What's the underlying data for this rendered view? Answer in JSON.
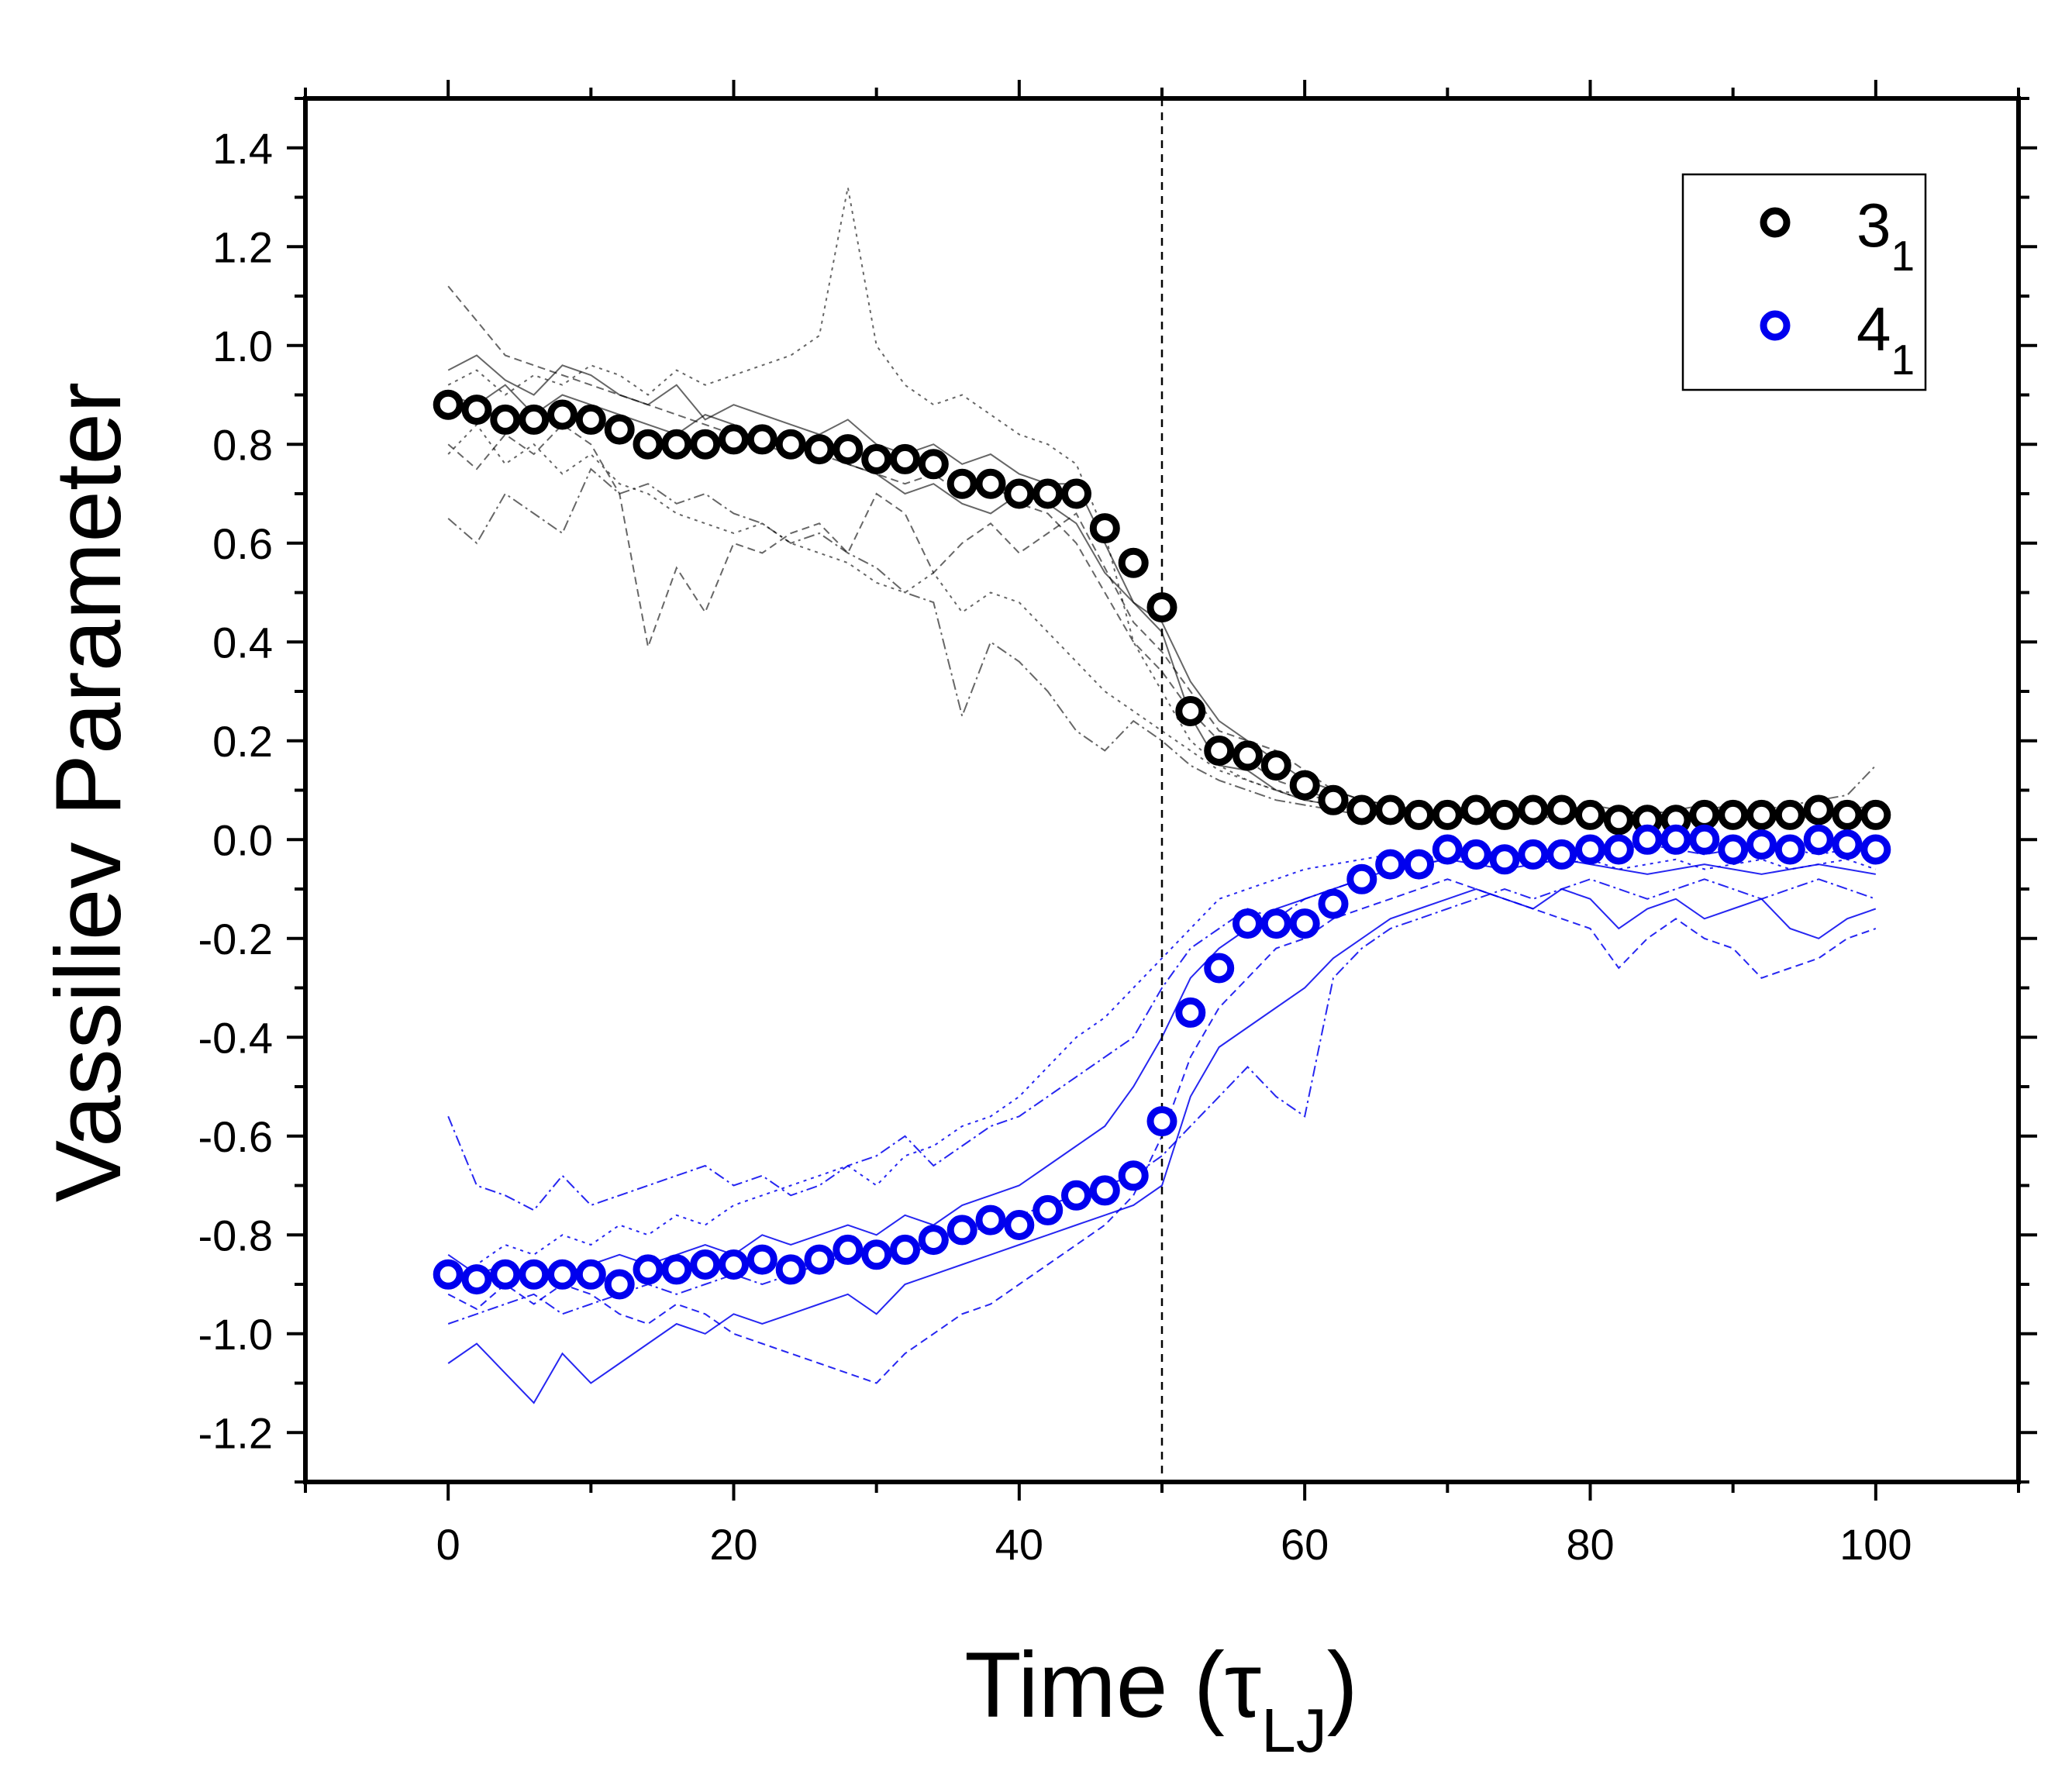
{
  "chart_data": {
    "type": "scatter",
    "xlabel": "Time (τLJ)",
    "xlabel_main": "Time (τ",
    "xlabel_sub": "LJ",
    "xlabel_close": ")",
    "ylabel": "Vassiliev Parameter",
    "xlim": [
      -10,
      110
    ],
    "ylim": [
      -1.3,
      1.5
    ],
    "x_ticks": [
      0,
      20,
      40,
      60,
      80,
      100
    ],
    "x_tick_labels": [
      "0",
      "20",
      "40",
      "60",
      "80",
      "100"
    ],
    "y_ticks": [
      -1.2,
      -1.0,
      -0.8,
      -0.6,
      -0.4,
      -0.2,
      0.0,
      0.2,
      0.4,
      0.6,
      0.8,
      1.0,
      1.2,
      1.4
    ],
    "y_tick_labels": [
      "-1.2",
      "-1.0",
      "-0.8",
      "-0.6",
      "-0.4",
      "-0.2",
      "0.0",
      "0.2",
      "0.4",
      "0.6",
      "0.8",
      "1.0",
      "1.2",
      "1.4"
    ],
    "grid": false,
    "legend_position": "top-right",
    "vertical_reference_line": {
      "x": 50,
      "style": "dashed"
    },
    "x": [
      0,
      2,
      4,
      6,
      8,
      10,
      12,
      14,
      16,
      18,
      20,
      22,
      24,
      26,
      28,
      30,
      32,
      34,
      36,
      38,
      40,
      42,
      44,
      46,
      48,
      50,
      52,
      54,
      56,
      58,
      60,
      62,
      64,
      66,
      68,
      70,
      72,
      74,
      76,
      78,
      80,
      82,
      84,
      86,
      88,
      90,
      92,
      94,
      96,
      98,
      100
    ],
    "series": [
      {
        "name_main": "3",
        "name_sub": "1",
        "color": "#000000",
        "marker": "open-circle",
        "values": [
          0.88,
          0.87,
          0.85,
          0.85,
          0.86,
          0.85,
          0.83,
          0.8,
          0.8,
          0.8,
          0.81,
          0.81,
          0.8,
          0.79,
          0.79,
          0.77,
          0.77,
          0.76,
          0.72,
          0.72,
          0.7,
          0.7,
          0.7,
          0.63,
          0.56,
          0.47,
          0.26,
          0.18,
          0.17,
          0.15,
          0.11,
          0.08,
          0.06,
          0.06,
          0.05,
          0.05,
          0.06,
          0.05,
          0.06,
          0.06,
          0.05,
          0.04,
          0.04,
          0.04,
          0.05,
          0.05,
          0.05,
          0.05,
          0.06,
          0.05,
          0.05
        ]
      },
      {
        "name_main": "4",
        "name_sub": "1",
        "color": "#0000ee",
        "marker": "open-circle",
        "values": [
          -0.88,
          -0.89,
          -0.88,
          -0.88,
          -0.88,
          -0.88,
          -0.9,
          -0.87,
          -0.87,
          -0.86,
          -0.86,
          -0.85,
          -0.87,
          -0.85,
          -0.83,
          -0.84,
          -0.83,
          -0.81,
          -0.79,
          -0.77,
          -0.78,
          -0.75,
          -0.72,
          -0.71,
          -0.68,
          -0.57,
          -0.35,
          -0.26,
          -0.17,
          -0.17,
          -0.17,
          -0.13,
          -0.08,
          -0.05,
          -0.05,
          -0.02,
          -0.03,
          -0.04,
          -0.03,
          -0.03,
          -0.02,
          -0.02,
          0.0,
          0.0,
          0.0,
          -0.02,
          -0.01,
          -0.02,
          0.0,
          -0.01,
          -0.02
        ]
      }
    ],
    "background_traces_note_free": true,
    "background_traces": [
      {
        "series_index": 0,
        "values": [
          0.95,
          0.98,
          0.93,
          0.9,
          0.96,
          0.94,
          0.9,
          0.88,
          0.92,
          0.85,
          0.88,
          0.86,
          0.84,
          0.82,
          0.85,
          0.8,
          0.78,
          0.8,
          0.76,
          0.78,
          0.74,
          0.72,
          0.72,
          0.6,
          0.48,
          0.42,
          0.25,
          0.15,
          0.14,
          0.1,
          0.08,
          0.07,
          0.06,
          0.05,
          0.06,
          0.05,
          0.04,
          0.06,
          0.05,
          0.07,
          0.06,
          0.04,
          0.05,
          0.05,
          0.06,
          0.07,
          0.04,
          0.06,
          0.05,
          0.06,
          0.07
        ]
      },
      {
        "series_index": 0,
        "values": [
          0.8,
          0.75,
          0.82,
          0.78,
          0.84,
          0.8,
          0.7,
          0.39,
          0.55,
          0.46,
          0.6,
          0.58,
          0.62,
          0.64,
          0.58,
          0.7,
          0.66,
          0.54,
          0.6,
          0.64,
          0.58,
          0.62,
          0.66,
          0.55,
          0.44,
          0.38,
          0.3,
          0.22,
          0.2,
          0.18,
          0.14,
          0.1,
          0.08,
          0.07,
          0.06,
          0.05,
          0.06,
          0.04,
          0.05,
          0.06,
          0.04,
          0.05,
          0.06,
          0.04,
          0.05,
          0.06,
          0.05,
          0.04,
          0.05,
          0.06,
          0.05
        ]
      },
      {
        "series_index": 0,
        "values": [
          0.92,
          0.95,
          0.9,
          0.94,
          0.92,
          0.96,
          0.94,
          0.9,
          0.95,
          0.92,
          0.94,
          0.96,
          0.98,
          1.02,
          1.32,
          1.0,
          0.92,
          0.88,
          0.9,
          0.86,
          0.82,
          0.8,
          0.76,
          0.62,
          0.4,
          0.3,
          0.2,
          0.15,
          0.12,
          0.1,
          0.08,
          0.07,
          0.05,
          0.06,
          0.05,
          0.06,
          0.05,
          0.06,
          0.05,
          0.04,
          0.06,
          0.05,
          0.06,
          0.05,
          0.04,
          0.05,
          0.06,
          0.05,
          0.06,
          0.05,
          0.06
        ]
      },
      {
        "series_index": 0,
        "values": [
          0.65,
          0.6,
          0.7,
          0.66,
          0.62,
          0.75,
          0.7,
          0.72,
          0.68,
          0.7,
          0.66,
          0.64,
          0.6,
          0.62,
          0.58,
          0.55,
          0.5,
          0.48,
          0.25,
          0.4,
          0.36,
          0.3,
          0.22,
          0.18,
          0.24,
          0.2,
          0.15,
          0.12,
          0.1,
          0.08,
          0.07,
          0.06,
          0.05,
          0.06,
          0.05,
          0.06,
          0.07,
          0.05,
          0.06,
          0.05,
          0.07,
          0.06,
          0.05,
          0.06,
          0.07,
          0.05,
          0.06,
          0.07,
          0.08,
          0.09,
          0.15
        ]
      },
      {
        "series_index": 0,
        "values": [
          0.9,
          0.88,
          0.92,
          0.86,
          0.9,
          0.88,
          0.86,
          0.84,
          0.82,
          0.86,
          0.84,
          0.8,
          0.78,
          0.8,
          0.76,
          0.74,
          0.7,
          0.72,
          0.68,
          0.66,
          0.7,
          0.68,
          0.64,
          0.54,
          0.48,
          0.44,
          0.32,
          0.24,
          0.2,
          0.16,
          0.12,
          0.1,
          0.08,
          0.07,
          0.06,
          0.05,
          0.04,
          0.05,
          0.06,
          0.05,
          0.04,
          0.06,
          0.05,
          0.04,
          0.05,
          0.06,
          0.04,
          0.05,
          0.06,
          0.04,
          0.05
        ]
      },
      {
        "series_index": 0,
        "values": [
          1.12,
          1.05,
          0.98,
          0.96,
          0.94,
          0.92,
          0.9,
          0.88,
          0.86,
          0.84,
          0.82,
          0.82,
          0.8,
          0.78,
          0.76,
          0.74,
          0.72,
          0.74,
          0.7,
          0.72,
          0.68,
          0.66,
          0.6,
          0.5,
          0.4,
          0.34,
          0.26,
          0.2,
          0.16,
          0.12,
          0.1,
          0.08,
          0.06,
          0.05,
          0.06,
          0.05,
          0.04,
          0.05,
          0.06,
          0.05,
          0.04,
          0.03,
          0.05,
          0.06,
          0.04,
          0.05,
          0.06,
          0.05,
          0.04,
          0.05,
          0.06
        ]
      },
      {
        "series_index": 0,
        "values": [
          0.78,
          0.84,
          0.76,
          0.8,
          0.74,
          0.78,
          0.72,
          0.7,
          0.66,
          0.64,
          0.62,
          0.64,
          0.6,
          0.58,
          0.56,
          0.52,
          0.5,
          0.54,
          0.46,
          0.5,
          0.48,
          0.42,
          0.36,
          0.3,
          0.26,
          0.22,
          0.18,
          0.14,
          0.12,
          0.1,
          0.09,
          0.08,
          0.07,
          0.06,
          0.05,
          0.06,
          0.05,
          0.06,
          0.05,
          0.06,
          0.05,
          0.06,
          0.05,
          0.06,
          0.05,
          0.06,
          0.05,
          0.06,
          0.05,
          0.06,
          0.05
        ]
      },
      {
        "series_index": 1,
        "values": [
          -0.56,
          -0.7,
          -0.72,
          -0.75,
          -0.68,
          -0.74,
          -0.72,
          -0.7,
          -0.68,
          -0.66,
          -0.7,
          -0.68,
          -0.72,
          -0.7,
          -0.66,
          -0.64,
          -0.6,
          -0.66,
          -0.62,
          -0.58,
          -0.56,
          -0.52,
          -0.48,
          -0.44,
          -0.4,
          -0.3,
          -0.22,
          -0.18,
          -0.14,
          -0.16,
          -0.12,
          -0.1,
          -0.08,
          -0.06,
          -0.05,
          -0.04,
          -0.03,
          -0.04,
          -0.03,
          -0.02,
          -0.03,
          -0.02,
          -0.01,
          -0.02,
          -0.03,
          -0.02,
          -0.01,
          -0.02,
          -0.03,
          -0.02,
          -0.01
        ]
      },
      {
        "series_index": 1,
        "values": [
          -1.06,
          -1.02,
          -1.08,
          -1.14,
          -1.04,
          -1.1,
          -1.06,
          -1.02,
          -0.98,
          -1.0,
          -0.96,
          -0.98,
          -0.96,
          -0.94,
          -0.92,
          -0.96,
          -0.9,
          -0.88,
          -0.86,
          -0.84,
          -0.82,
          -0.8,
          -0.78,
          -0.76,
          -0.74,
          -0.7,
          -0.52,
          -0.42,
          -0.38,
          -0.34,
          -0.3,
          -0.24,
          -0.2,
          -0.16,
          -0.14,
          -0.12,
          -0.1,
          -0.12,
          -0.14,
          -0.1,
          -0.12,
          -0.18,
          -0.14,
          -0.12,
          -0.16,
          -0.14,
          -0.12,
          -0.18,
          -0.2,
          -0.16,
          -0.14
        ]
      },
      {
        "series_index": 1,
        "values": [
          -0.92,
          -0.95,
          -0.9,
          -0.94,
          -0.9,
          -0.92,
          -0.96,
          -0.98,
          -0.94,
          -0.96,
          -1.0,
          -1.02,
          -1.04,
          -1.06,
          -1.08,
          -1.1,
          -1.04,
          -1.0,
          -0.96,
          -0.94,
          -0.9,
          -0.86,
          -0.82,
          -0.78,
          -0.72,
          -0.6,
          -0.44,
          -0.34,
          -0.28,
          -0.22,
          -0.2,
          -0.16,
          -0.14,
          -0.12,
          -0.1,
          -0.08,
          -0.1,
          -0.12,
          -0.14,
          -0.16,
          -0.18,
          -0.26,
          -0.2,
          -0.16,
          -0.2,
          -0.22,
          -0.28,
          -0.26,
          -0.24,
          -0.2,
          -0.18
        ]
      },
      {
        "series_index": 1,
        "values": [
          -0.9,
          -0.86,
          -0.82,
          -0.84,
          -0.8,
          -0.82,
          -0.78,
          -0.8,
          -0.76,
          -0.78,
          -0.74,
          -0.72,
          -0.7,
          -0.68,
          -0.66,
          -0.7,
          -0.64,
          -0.62,
          -0.58,
          -0.56,
          -0.52,
          -0.46,
          -0.4,
          -0.36,
          -0.3,
          -0.24,
          -0.18,
          -0.12,
          -0.1,
          -0.08,
          -0.06,
          -0.05,
          -0.04,
          -0.03,
          -0.04,
          -0.03,
          -0.02,
          -0.03,
          -0.04,
          -0.05,
          -0.04,
          -0.06,
          -0.05,
          -0.04,
          -0.06,
          -0.05,
          -0.04,
          -0.06,
          -0.05,
          -0.04,
          -0.06
        ]
      },
      {
        "series_index": 1,
        "values": [
          -0.98,
          -0.96,
          -0.94,
          -0.92,
          -0.96,
          -0.94,
          -0.92,
          -0.9,
          -0.92,
          -0.9,
          -0.88,
          -0.9,
          -0.88,
          -0.86,
          -0.84,
          -0.82,
          -0.84,
          -0.82,
          -0.8,
          -0.78,
          -0.76,
          -0.74,
          -0.72,
          -0.7,
          -0.68,
          -0.64,
          -0.58,
          -0.52,
          -0.46,
          -0.52,
          -0.56,
          -0.28,
          -0.22,
          -0.18,
          -0.16,
          -0.14,
          -0.12,
          -0.1,
          -0.12,
          -0.1,
          -0.08,
          -0.1,
          -0.12,
          -0.1,
          -0.08,
          -0.1,
          -0.12,
          -0.1,
          -0.08,
          -0.1,
          -0.12
        ]
      },
      {
        "series_index": 1,
        "values": [
          -0.84,
          -0.88,
          -0.86,
          -0.9,
          -0.88,
          -0.86,
          -0.84,
          -0.86,
          -0.84,
          -0.82,
          -0.84,
          -0.8,
          -0.82,
          -0.8,
          -0.78,
          -0.8,
          -0.76,
          -0.78,
          -0.74,
          -0.72,
          -0.7,
          -0.66,
          -0.62,
          -0.58,
          -0.5,
          -0.4,
          -0.28,
          -0.22,
          -0.18,
          -0.14,
          -0.12,
          -0.1,
          -0.08,
          -0.06,
          -0.05,
          -0.04,
          -0.05,
          -0.06,
          -0.05,
          -0.04,
          -0.05,
          -0.06,
          -0.07,
          -0.06,
          -0.05,
          -0.06,
          -0.07,
          -0.06,
          -0.05,
          -0.06,
          -0.07
        ]
      }
    ]
  }
}
